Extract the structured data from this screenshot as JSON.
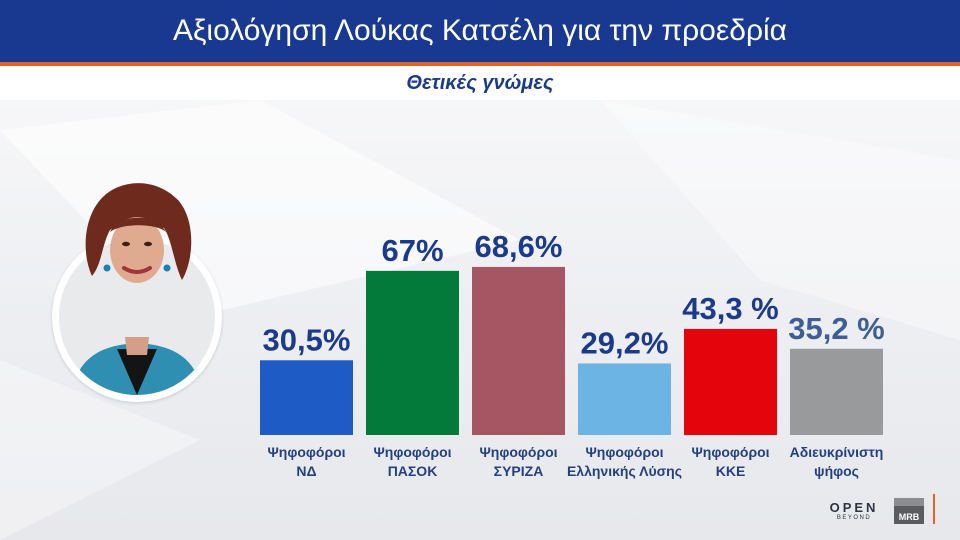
{
  "header": {
    "title": "Αξιολόγηση Λούκας Κατσέλη για την προεδρία"
  },
  "subtitle": "Θετικές γνώμες",
  "colors": {
    "header_bg": "#18398f",
    "accent_rule": "#e0632c",
    "value_text": "#1b3a8c",
    "label_text": "#23407f"
  },
  "chart_data": {
    "type": "bar",
    "title": "Αξιολόγηση Λούκας Κατσέλη για την προεδρία",
    "subtitle": "Θετικές γνώμες",
    "categories": [
      [
        "Ψηφοφόροι",
        "ΝΔ"
      ],
      [
        "Ψηφοφόροι",
        "ΠΑΣΟΚ"
      ],
      [
        "Ψηφοφόροι",
        "ΣΥΡΙΖΑ"
      ],
      [
        "Ψηφοφόροι",
        "Ελληνικής Λύσης"
      ],
      [
        "Ψηφοφόροι",
        "ΚΚΕ"
      ],
      [
        "Αδιευκρίνιστη",
        "ψήφος"
      ]
    ],
    "values": [
      30.5,
      67,
      68.6,
      29.2,
      43.3,
      35.2
    ],
    "value_labels": [
      "30,5%",
      "67%",
      "68,6%",
      "29,2%",
      "43,3 %",
      "35,2 %"
    ],
    "colors": [
      "#1f5bc4",
      "#037a3a",
      "#a65563",
      "#6cb4e4",
      "#e4050c",
      "#999a9c"
    ],
    "label_colors": [
      "#1b3a8c",
      "#1b3a8c",
      "#1b3a8c",
      "#1b3a8c",
      "#1b3a8c",
      "#3f5f93"
    ],
    "ylim": [
      0,
      100
    ],
    "grid": false,
    "legend": "none"
  },
  "branding": {
    "logo_open_line1": "OPEN",
    "logo_open_line2": "BEYOND",
    "logo_mrb": "MRB"
  },
  "portrait": {
    "icon": "person-portrait"
  }
}
